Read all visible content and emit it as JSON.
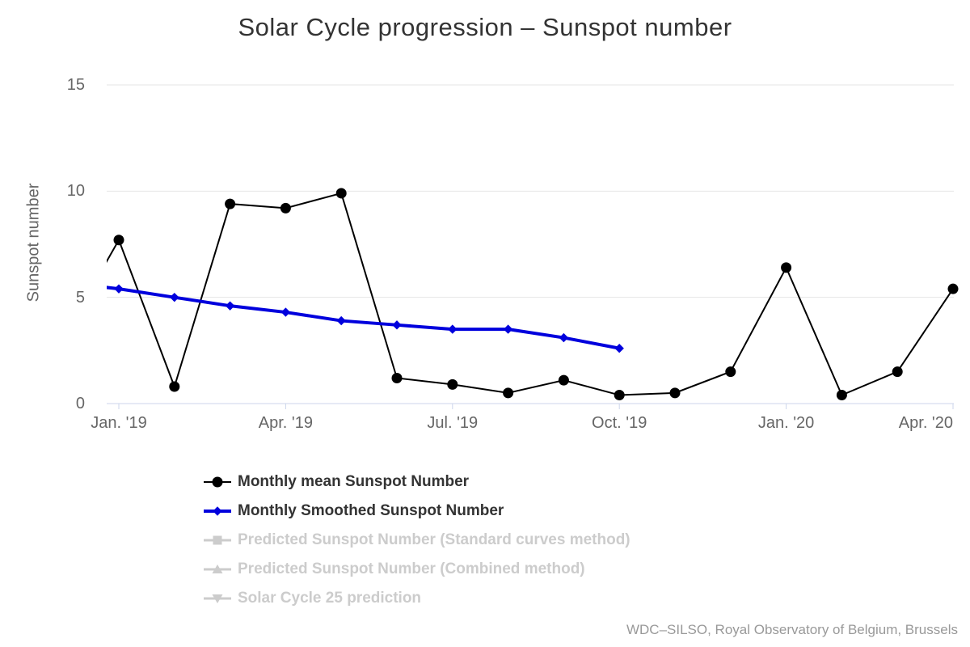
{
  "page_title": "Solar Cycle progression – Sunspot number",
  "chart_data": {
    "type": "line",
    "title": "Solar Cycle progression – Sunspot number",
    "xlabel": "",
    "ylabel": "Sunspot number",
    "ylim": [
      0,
      15
    ],
    "ytick_values": [
      0,
      5,
      10,
      15
    ],
    "ytick_labels": [
      "0",
      "5",
      "10",
      "15"
    ],
    "grid": true,
    "categories": [
      "Jan 2019",
      "Feb 2019",
      "Mar 2019",
      "Apr 2019",
      "May 2019",
      "Jun 2019",
      "Jul 2019",
      "Aug 2019",
      "Sep 2019",
      "Oct 2019",
      "Nov 2019",
      "Dec 2019",
      "Jan 2020",
      "Feb 2020",
      "Mar 2020",
      "Apr 2020"
    ],
    "xtick_month_indices": [
      0,
      3,
      6,
      9,
      12,
      15
    ],
    "xtick_labels": [
      "Jan. '19",
      "Apr. '19",
      "Jul. '19",
      "Oct. '19",
      "Jan. '20",
      "Apr. '20"
    ],
    "series": [
      {
        "name": "Monthly mean Sunspot Number",
        "marker": "circle",
        "color": "#000000",
        "line_width": 2,
        "edge_value_dec_2018": 3.1,
        "values": [
          7.7,
          0.8,
          9.4,
          9.2,
          9.9,
          1.2,
          0.9,
          0.5,
          1.1,
          0.4,
          0.5,
          1.5,
          6.4,
          0.4,
          1.5,
          5.4
        ]
      },
      {
        "name": "Monthly Smoothed Sunspot Number",
        "marker": "diamond",
        "color": "#0000dd",
        "line_width": 4,
        "edge_value_dec_2018": 5.7,
        "values": [
          5.4,
          5.0,
          4.6,
          4.3,
          3.9,
          3.7,
          3.5,
          3.5,
          3.1,
          2.6
        ]
      }
    ],
    "legend_position": "bottom-left",
    "legend_items": [
      {
        "label": "Monthly mean Sunspot Number",
        "marker": "circle",
        "color": "#000000",
        "line_width": 2,
        "enabled": true
      },
      {
        "label": "Monthly Smoothed Sunspot Number",
        "marker": "diamond",
        "color": "#0000dd",
        "line_width": 4,
        "enabled": true
      },
      {
        "label": "Predicted Sunspot Number (Standard curves method)",
        "marker": "square",
        "color": "#cccccc",
        "line_width": 3,
        "enabled": false
      },
      {
        "label": "Predicted Sunspot Number (Combined method)",
        "marker": "triangle-up",
        "color": "#cccccc",
        "line_width": 3,
        "enabled": false
      },
      {
        "label": "Solar Cycle 25 prediction",
        "marker": "triangle-down",
        "color": "#cccccc",
        "line_width": 3,
        "enabled": false
      }
    ],
    "credit": "WDC–SILSO, Royal Observatory of Belgium, Brussels",
    "colors": {
      "background": "#ffffff",
      "grid": "#e6e6e6",
      "axis": "#ccd6eb",
      "axis_labels": "#666666",
      "title": "#333333",
      "legend_enabled_text": "#333333",
      "legend_disabled_text": "#cccccc",
      "credit_text": "#999999"
    }
  }
}
